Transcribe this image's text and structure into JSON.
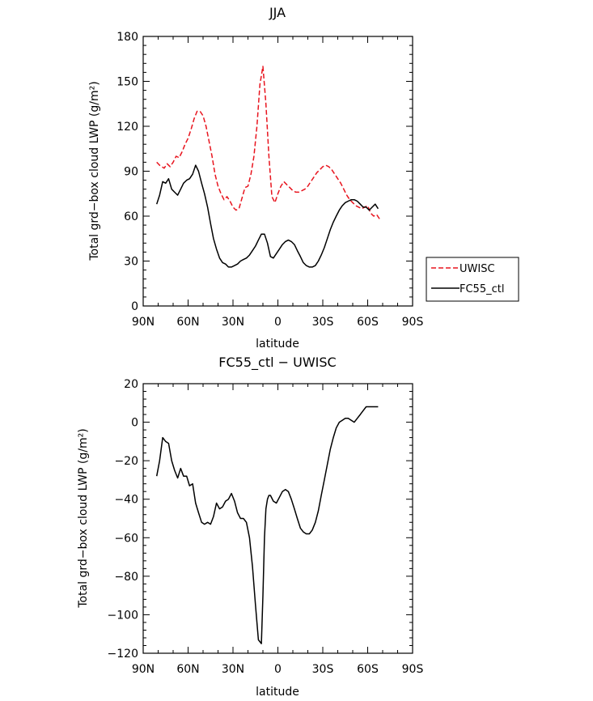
{
  "chart_data": [
    {
      "type": "line",
      "title": "JJA",
      "xlabel": "latitude",
      "ylabel": "Total grd−box cloud LWP (g/m²)",
      "xlim": [
        90,
        -90
      ],
      "ylim": [
        0,
        180
      ],
      "yticks": [
        0,
        30,
        60,
        90,
        120,
        150,
        180
      ],
      "xticks": [
        90,
        60,
        30,
        0,
        -30,
        -60,
        -90
      ],
      "xtick_labels": [
        "90N",
        "60N",
        "30N",
        "0",
        "30S",
        "60S",
        "90S"
      ],
      "legend_position": "right",
      "series": [
        {
          "name": "UWISC",
          "color": "#e8141e",
          "dash": "dashed",
          "x": [
            81,
            79,
            76,
            74,
            72,
            70,
            68,
            66,
            64,
            62,
            60,
            58,
            56,
            54,
            52,
            50,
            48,
            46,
            44,
            42,
            40,
            38,
            36,
            34,
            32,
            30,
            28,
            26,
            24,
            22,
            20,
            18,
            16,
            14,
            12,
            10,
            8,
            6,
            4,
            2,
            0,
            -2,
            -4,
            -6,
            -8,
            -10,
            -12,
            -14,
            -16,
            -18,
            -20,
            -22,
            -24,
            -26,
            -28,
            -30,
            -32,
            -34,
            -36,
            -38,
            -40,
            -42,
            -44,
            -46,
            -48,
            -50,
            -52,
            -54,
            -56,
            -58,
            -60,
            -62,
            -64,
            -66,
            -68
          ],
          "y": [
            96,
            94,
            92,
            95,
            93,
            96,
            100,
            99,
            103,
            108,
            112,
            118,
            125,
            130,
            130,
            127,
            120,
            110,
            100,
            88,
            80,
            75,
            71,
            73,
            70,
            66,
            64,
            65,
            72,
            79,
            80,
            88,
            100,
            120,
            148,
            160,
            135,
            100,
            73,
            69,
            75,
            80,
            83,
            81,
            79,
            77,
            76,
            76,
            77,
            78,
            80,
            83,
            86,
            89,
            91,
            93,
            94,
            93,
            91,
            88,
            85,
            82,
            78,
            74,
            71,
            69,
            67,
            66,
            65,
            66,
            67,
            62,
            60,
            61,
            58
          ]
        },
        {
          "name": "FC55_ctl",
          "color": "#000000",
          "dash": "solid",
          "x": [
            81,
            79,
            77,
            75,
            73,
            71,
            69,
            67,
            65,
            63,
            61,
            59,
            57,
            55,
            53,
            51,
            49,
            47,
            45,
            43,
            41,
            39,
            37,
            35,
            33,
            31,
            29,
            27,
            25,
            23,
            21,
            19,
            17,
            15,
            13,
            11,
            9,
            7,
            5,
            3,
            1,
            -1,
            -3,
            -5,
            -7,
            -9,
            -11,
            -13,
            -15,
            -17,
            -19,
            -21,
            -23,
            -25,
            -27,
            -29,
            -31,
            -33,
            -35,
            -37,
            -39,
            -41,
            -43,
            -45,
            -47,
            -49,
            -51,
            -53,
            -55,
            -57,
            -59,
            -61,
            -63,
            -65,
            -67
          ],
          "y": [
            68,
            74,
            83,
            82,
            85,
            78,
            76,
            74,
            78,
            82,
            84,
            85,
            88,
            94,
            90,
            82,
            75,
            66,
            55,
            45,
            38,
            32,
            29,
            28,
            26,
            26,
            27,
            28,
            30,
            31,
            32,
            34,
            37,
            40,
            44,
            48,
            48,
            42,
            33,
            32,
            35,
            38,
            41,
            43,
            44,
            43,
            41,
            37,
            33,
            29,
            27,
            26,
            26,
            27,
            30,
            34,
            39,
            45,
            51,
            56,
            60,
            64,
            67,
            69,
            70,
            71,
            71,
            70,
            68,
            66,
            66,
            64,
            66,
            68,
            65
          ]
        }
      ]
    },
    {
      "type": "line",
      "title": "FC55_ctl − UWISC",
      "xlabel": "latitude",
      "ylabel": "Total grd−box cloud LWP (g/m²)",
      "xlim": [
        90,
        -90
      ],
      "ylim": [
        -120,
        20
      ],
      "yticks": [
        -120,
        -100,
        -80,
        -60,
        -40,
        -20,
        0,
        20
      ],
      "ytick_labels": [
        "−120",
        "−100",
        "−80",
        "−60",
        "−40",
        "−20",
        "0",
        "20"
      ],
      "xticks": [
        90,
        60,
        30,
        0,
        -30,
        -60,
        -90
      ],
      "xtick_labels": [
        "90N",
        "60N",
        "30N",
        "0",
        "30S",
        "60S",
        "90S"
      ],
      "series": [
        {
          "color": "#000000",
          "dash": "solid",
          "x": [
            81,
            79,
            77,
            75,
            73,
            71,
            69,
            67,
            65,
            63,
            61,
            59,
            57,
            55,
            53,
            51,
            49,
            47,
            45,
            43,
            41,
            39,
            37,
            35,
            33,
            31,
            29,
            27,
            25,
            23,
            21,
            19,
            17,
            15,
            13,
            11,
            10,
            9,
            8,
            7,
            6,
            5,
            3,
            1,
            -1,
            -3,
            -5,
            -7,
            -9,
            -11,
            -13,
            -15,
            -17,
            -19,
            -21,
            -23,
            -25,
            -27,
            -29,
            -31,
            -33,
            -35,
            -37,
            -39,
            -41,
            -43,
            -45,
            -47,
            -49,
            -51,
            -53,
            -55,
            -57,
            -59,
            -61,
            -63,
            -65,
            -67
          ],
          "y": [
            -28,
            -20,
            -8,
            -10,
            -11,
            -20,
            -25,
            -29,
            -24,
            -28,
            -28,
            -33,
            -32,
            -42,
            -47,
            -52,
            -53,
            -52,
            -53,
            -49,
            -42,
            -45,
            -44,
            -41,
            -40,
            -37,
            -41,
            -47,
            -50,
            -50,
            -52,
            -60,
            -75,
            -95,
            -113,
            -115,
            -90,
            -60,
            -45,
            -40,
            -38,
            -38,
            -41,
            -42,
            -39,
            -36,
            -35,
            -36,
            -40,
            -45,
            -50,
            -55,
            -57,
            -58,
            -58,
            -56,
            -52,
            -46,
            -38,
            -30,
            -22,
            -14,
            -8,
            -3,
            0,
            1,
            2,
            2,
            1,
            0,
            2,
            4,
            6,
            8,
            8,
            8,
            8,
            8
          ]
        }
      ]
    }
  ]
}
